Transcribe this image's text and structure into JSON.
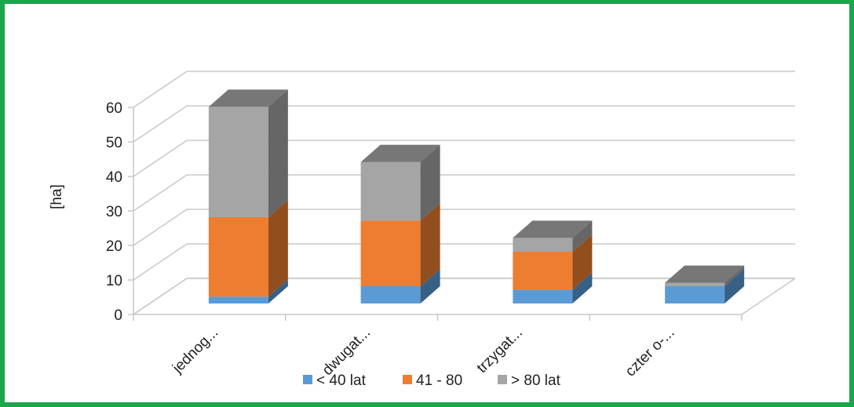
{
  "chart_data": {
    "type": "bar",
    "stacked": true,
    "three_d": true,
    "categories": [
      "jednog...",
      "dwugat...",
      "trzygat...",
      "czter o-..."
    ],
    "series": [
      {
        "name": "< 40 lat",
        "color": "#5b9bd5",
        "values": [
          2,
          5,
          4,
          5
        ]
      },
      {
        "name": "41 - 80",
        "color": "#ed7d31",
        "values": [
          23,
          19,
          11,
          0
        ]
      },
      {
        "name": "> 80 lat",
        "color": "#a5a5a5",
        "values": [
          32,
          17,
          4,
          1
        ]
      }
    ],
    "ylabel": "[ha]",
    "xlabel": "",
    "yticks": [
      "0",
      "10",
      "20",
      "30",
      "40",
      "50",
      "60"
    ],
    "ylim": [
      0,
      60
    ],
    "grid": true,
    "legend": "bottom",
    "frame_color": "#1aa64a"
  }
}
